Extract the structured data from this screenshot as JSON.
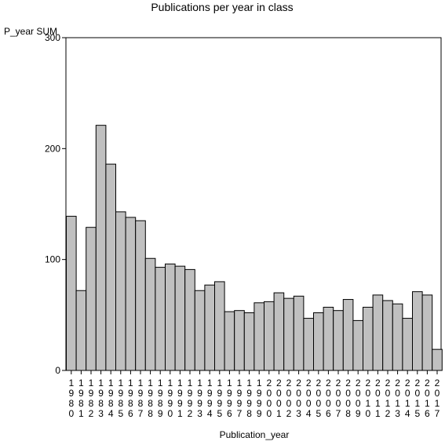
{
  "chart_data": {
    "type": "bar",
    "title": "Publications per year in class",
    "xlabel": "Publication_year",
    "ylabel": "P_year SUM",
    "ylim": [
      0,
      300
    ],
    "yticks": [
      "0",
      "100",
      "200",
      "300"
    ],
    "categories": [
      "1980",
      "1981",
      "1982",
      "1983",
      "1984",
      "1985",
      "1986",
      "1987",
      "1988",
      "1989",
      "1990",
      "1991",
      "1992",
      "1993",
      "1994",
      "1995",
      "1996",
      "1997",
      "1998",
      "1999",
      "2000",
      "2001",
      "2002",
      "2003",
      "2004",
      "2005",
      "2006",
      "2007",
      "2008",
      "2009",
      "2010",
      "2011",
      "2012",
      "2013",
      "2014",
      "2015",
      "2016",
      "2017"
    ],
    "values": [
      139,
      72,
      129,
      221,
      186,
      143,
      138,
      135,
      101,
      93,
      96,
      94,
      91,
      72,
      77,
      80,
      53,
      54,
      52,
      61,
      62,
      70,
      65,
      67,
      47,
      52,
      57,
      54,
      64,
      45,
      57,
      68,
      63,
      60,
      47,
      71,
      68,
      19
    ],
    "bar_color": "#c0c0c0",
    "grid": false,
    "legend": "none"
  }
}
